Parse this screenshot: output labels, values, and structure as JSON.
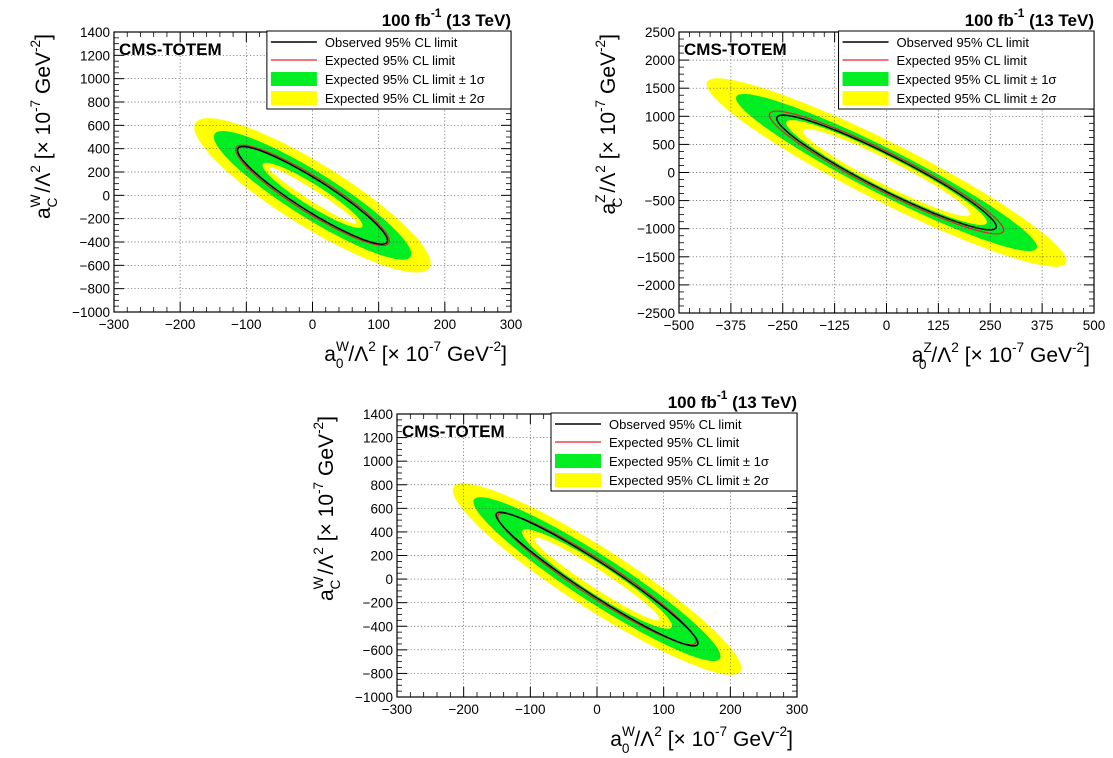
{
  "chart_data": [
    {
      "type": "contour",
      "lumi_label": "100 fb",
      "lumi_exp": "-1",
      "energy_label": " (13 TeV)",
      "experiment": "CMS-TOTEM",
      "xlabel": {
        "base": "a",
        "sup": "W",
        "sub": "0",
        "rest": "/Λ",
        "sq": "2",
        "unit": " [× 10",
        "uexp": "-7",
        "unit2": " GeV",
        "uexp2": "-2",
        "close": "]"
      },
      "ylabel": {
        "base": "a",
        "sup": "W",
        "sub": "C",
        "rest": "/Λ",
        "sq": "2",
        "unit": " [× 10",
        "uexp": "-7",
        "unit2": " GeV",
        "uexp2": "-2",
        "close": "]"
      },
      "xlim": [
        -300,
        300
      ],
      "ylim": [
        -1000,
        1400
      ],
      "xticks": [
        -300,
        -200,
        -100,
        0,
        100,
        200,
        300
      ],
      "yticks": [
        -1000,
        -800,
        -600,
        -400,
        -200,
        0,
        200,
        400,
        600,
        800,
        1000,
        1200,
        1400
      ],
      "xticklabels": [
        "−300",
        "−200",
        "−100",
        "0",
        "100",
        "200",
        "300"
      ],
      "yticklabels": [
        "−1000",
        "−800",
        "−600",
        "−400",
        "−200",
        "0",
        "200",
        "400",
        "600",
        "800",
        "1000",
        "1200",
        "1400"
      ],
      "grid": true,
      "legend": [
        "Observed 95% CL limit",
        "Expected 95% CL limit",
        "Expected 95% CL limit ± 1σ",
        "Expected 95% CL limit ± 2σ"
      ],
      "colors": {
        "observed": "#000000",
        "expected": "#e8202a",
        "band1": "#00ee22",
        "band2": "#ffff00"
      },
      "contours": {
        "sigma2_outer": {
          "dir": [
            120,
            -440
          ],
          "halfwidth": 0.18,
          "extent": 1.45
        },
        "sigma1_outer": {
          "dir": [
            120,
            -440
          ],
          "halfwidth": 0.13,
          "extent": 1.22
        },
        "sigma1_inner": {
          "dir": [
            120,
            -440
          ],
          "halfwidth": 0.06,
          "extent": 0.62
        },
        "sigma2_inner": {
          "dir": [
            120,
            -440
          ],
          "halfwidth": 0.03,
          "extent": 0.55
        },
        "observed": {
          "dir": [
            120,
            -440
          ],
          "halfwidth": 0.09,
          "extent": 0.93
        },
        "expected": {
          "dir": [
            120,
            -440
          ],
          "halfwidth": 0.1,
          "extent": 0.95
        }
      }
    },
    {
      "type": "contour",
      "lumi_label": "100 fb",
      "lumi_exp": "-1",
      "energy_label": " (13 TeV)",
      "experiment": "CMS-TOTEM",
      "xlabel": {
        "base": "a",
        "sup": "Z",
        "sub": "0",
        "rest": "/Λ",
        "sq": "2",
        "unit": " [× 10",
        "uexp": "-7",
        "unit2": " GeV",
        "uexp2": "-2",
        "close": "]"
      },
      "ylabel": {
        "base": "a",
        "sup": "Z",
        "sub": "C",
        "rest": "/Λ",
        "sq": "2",
        "unit": " [× 10",
        "uexp": "-7",
        "unit2": " GeV",
        "uexp2": "-2",
        "close": "]"
      },
      "xlim": [
        -500,
        500
      ],
      "ylim": [
        -2500,
        2500
      ],
      "xticks": [
        -500,
        -375,
        -250,
        -125,
        0,
        125,
        250,
        375,
        500
      ],
      "yticks": [
        -2500,
        -2000,
        -1500,
        -1000,
        -500,
        0,
        500,
        1000,
        1500,
        2000,
        2500
      ],
      "xticklabels": [
        "−500",
        "−375",
        "−250",
        "−125",
        "0",
        "125",
        "250",
        "375",
        "500"
      ],
      "yticklabels": [
        "−2500",
        "−2000",
        "−1500",
        "−1000",
        "−500",
        "0",
        "500",
        "1000",
        "1500",
        "2000",
        "2500"
      ],
      "grid": true,
      "legend": [
        "Observed 95% CL limit",
        "Expected 95% CL limit",
        "Expected 95% CL limit ± 1σ",
        "Expected 95% CL limit ± 2σ"
      ],
      "colors": {
        "observed": "#000000",
        "expected": "#e8202a",
        "band1": "#00ee22",
        "band2": "#ffff00"
      },
      "contours": {
        "sigma2_outer": {
          "dir": [
            250,
            -950
          ],
          "halfwidth": 0.17,
          "extent": 1.72
        },
        "sigma1_outer": {
          "dir": [
            250,
            -950
          ],
          "halfwidth": 0.13,
          "extent": 1.44
        },
        "sigma1_inner": {
          "dir": [
            250,
            -950
          ],
          "halfwidth": 0.09,
          "extent": 0.96
        },
        "sigma2_inner": {
          "dir": [
            250,
            -950
          ],
          "halfwidth": 0.07,
          "extent": 0.8
        },
        "observed": {
          "dir": [
            250,
            -950
          ],
          "halfwidth": 0.1,
          "extent": 1.05
        },
        "expected": {
          "dir": [
            250,
            -950
          ],
          "halfwidth": 0.11,
          "extent": 1.12
        }
      }
    },
    {
      "type": "contour",
      "lumi_label": "100 fb",
      "lumi_exp": "-1",
      "energy_label": " (13 TeV)",
      "experiment": "CMS-TOTEM",
      "xlabel": {
        "base": "a",
        "sup": "W",
        "sub": "0",
        "rest": "/Λ",
        "sq": "2",
        "unit": " [× 10",
        "uexp": "-7",
        "unit2": " GeV",
        "uexp2": "-2",
        "close": "]"
      },
      "ylabel": {
        "base": "a",
        "sup": "W",
        "sub": "C",
        "rest": "/Λ",
        "sq": "2",
        "unit": " [× 10",
        "uexp": "-7",
        "unit2": " GeV",
        "uexp2": "-2",
        "close": "]"
      },
      "xlim": [
        -300,
        300
      ],
      "ylim": [
        -1000,
        1400
      ],
      "xticks": [
        -300,
        -200,
        -100,
        0,
        100,
        200,
        300
      ],
      "yticks": [
        -1000,
        -800,
        -600,
        -400,
        -200,
        0,
        200,
        400,
        600,
        800,
        1000,
        1200,
        1400
      ],
      "xticklabels": [
        "−300",
        "−200",
        "−100",
        "0",
        "100",
        "200",
        "300"
      ],
      "yticklabels": [
        "−1000",
        "−800",
        "−600",
        "−400",
        "−200",
        "0",
        "200",
        "400",
        "600",
        "800",
        "1000",
        "1200",
        "1400"
      ],
      "grid": true,
      "legend": [
        "Observed 95% CL limit",
        "Expected 95% CL limit",
        "Expected 95% CL limit ± 1σ",
        "Expected 95% CL limit ± 2σ"
      ],
      "colors": {
        "observed": "#000000",
        "expected": "#e8202a",
        "band1": "#00ee22",
        "band2": "#ffff00"
      },
      "contours": {
        "sigma2_outer": {
          "dir": [
            150,
            -560
          ],
          "halfwidth": 0.17,
          "extent": 1.42
        },
        "sigma1_outer": {
          "dir": [
            150,
            -560
          ],
          "halfwidth": 0.13,
          "extent": 1.22
        },
        "sigma1_inner": {
          "dir": [
            150,
            -560
          ],
          "halfwidth": 0.08,
          "extent": 0.74
        },
        "sigma2_inner": {
          "dir": [
            150,
            -560
          ],
          "halfwidth": 0.05,
          "extent": 0.62
        },
        "observed": {
          "dir": [
            150,
            -560
          ],
          "halfwidth": 0.09,
          "extent": 1.0
        },
        "expected": {
          "dir": [
            150,
            -560
          ],
          "halfwidth": 0.1,
          "extent": 0.98
        }
      }
    }
  ]
}
